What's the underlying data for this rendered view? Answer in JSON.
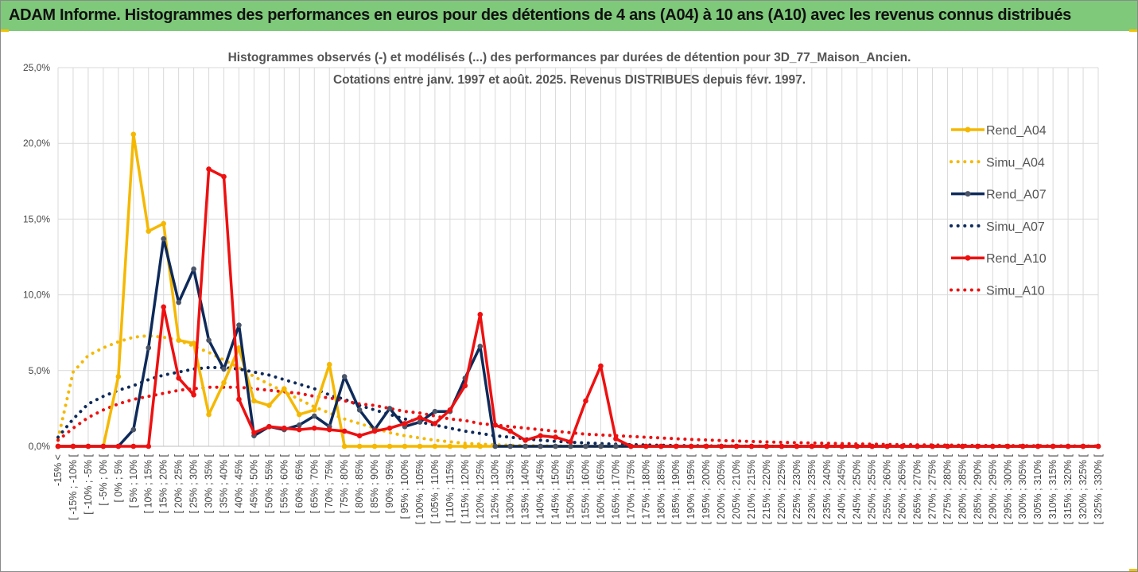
{
  "banner": {
    "title": "ADAM Informe. Histogrammes des performances en euros pour des détentions de 4 ans (A04) à 10 ans (A10) avec les revenus connus distribués"
  },
  "colors": {
    "banner_bg": "#7ec97a",
    "A04": "#f5b800",
    "A07": "#0e2a5a",
    "A10": "#ee1010",
    "grid": "#d9d9d9"
  },
  "chart_data": {
    "type": "line",
    "title_line1": "Histogrammes observés (-) et modélisés (...) des performances par durées de détention pour 3D_77_Maison_Ancien.",
    "title_line2": "Cotations entre janv. 1997 et août. 2025. Revenus DISTRIBUES depuis févr. 1997.",
    "ylim": [
      0,
      25
    ],
    "yticks": [
      "0,0%",
      "5,0%",
      "10,0%",
      "15,0%",
      "20,0%",
      "25,0%"
    ],
    "grid": true,
    "legend_position": "right",
    "categories": [
      "-15% <",
      "[ -15% ; -10% [",
      "[ -10% ; -5% [",
      "[ -5% ; 0% [",
      "[ 0% ; 5% [",
      "[ 5% ; 10% [",
      "[ 10% ; 15% [",
      "[ 15% ; 20% [",
      "[ 20% ; 25% [",
      "[ 25% ; 30% [",
      "[ 30% ; 35% [",
      "[ 35% ; 40% [",
      "[ 40% ; 45% [",
      "[ 45% ; 50% [",
      "[ 50% ; 55% [",
      "[ 55% ; 60% [",
      "[ 60% ; 65% [",
      "[ 65% ; 70% [",
      "[ 70% ; 75% [",
      "[ 75% ; 80% [",
      "[ 80% ; 85% [",
      "[ 85% ; 90% [",
      "[ 90% ; 95% [",
      "[ 95% ; 100% [",
      "[ 100% ; 105% [",
      "[ 105% ; 110% [",
      "[ 110% ; 115% [",
      "[ 115% ; 120% [",
      "[ 120% ; 125% [",
      "[ 125% ; 130% [",
      "[ 130% ; 135% [",
      "[ 135% ; 140% [",
      "[ 140% ; 145% [",
      "[ 145% ; 150% [",
      "[ 150% ; 155% [",
      "[ 155% ; 160% [",
      "[ 160% ; 165% [",
      "[ 165% ; 170% [",
      "[ 170% ; 175% [",
      "[ 175% ; 180% [",
      "[ 180% ; 185% [",
      "[ 185% ; 190% [",
      "[ 190% ; 195% [",
      "[ 195% ; 200% [",
      "[ 200% ; 205% [",
      "[ 205% ; 210% [",
      "[ 210% ; 215% [",
      "[ 215% ; 220% [",
      "[ 220% ; 225% [",
      "[ 225% ; 230% [",
      "[ 230% ; 235% [",
      "[ 235% ; 240% [",
      "[ 240% ; 245% [",
      "[ 245% ; 250% [",
      "[ 250% ; 255% [",
      "[ 255% ; 260% [",
      "[ 260% ; 265% [",
      "[ 265% ; 270% [",
      "[ 270% ; 275% [",
      "[ 275% ; 280% [",
      "[ 280% ; 285% [",
      "[ 285% ; 290% [",
      "[ 290% ; 295% [",
      "[ 295% ; 300% [",
      "[ 300% ; 305% [",
      "[ 305% ; 310% [",
      "[ 310% ; 315% [",
      "[ 315% ; 320% [",
      "[ 320% ; 325% [",
      "[ 325% ; 330% ["
    ],
    "series": [
      {
        "name": "Rend_A04",
        "style": "solid",
        "color": "#f5b800",
        "values": [
          0,
          0,
          0,
          0,
          4.6,
          20.6,
          14.2,
          14.7,
          7.0,
          6.8,
          2.1,
          4.2,
          6.5,
          3.0,
          2.7,
          3.8,
          2.1,
          2.4,
          5.4,
          0,
          0,
          0,
          0,
          0,
          0,
          0,
          0,
          0,
          0,
          0,
          0,
          0,
          0,
          0,
          0,
          0,
          0,
          0,
          0,
          0,
          0,
          0,
          0,
          0,
          0,
          0,
          0,
          0,
          0,
          0,
          0,
          0,
          0,
          0,
          0,
          0,
          0,
          0,
          0,
          0,
          0,
          0,
          0,
          0,
          0,
          0,
          0,
          0,
          0,
          0
        ]
      },
      {
        "name": "Simu_A04",
        "style": "dotted",
        "color": "#f5b800",
        "values": [
          0.5,
          4.9,
          6.0,
          6.5,
          6.9,
          7.2,
          7.3,
          7.2,
          7.0,
          6.6,
          6.2,
          5.7,
          5.2,
          4.6,
          4.1,
          3.6,
          3.1,
          2.6,
          2.2,
          1.8,
          1.5,
          1.2,
          0.9,
          0.7,
          0.55,
          0.4,
          0.3,
          0.2,
          0.14,
          0.1,
          0.07,
          0.05,
          0.03,
          0.02,
          0.01,
          0.01,
          0,
          0,
          0,
          0,
          0,
          0,
          0,
          0,
          0,
          0,
          0,
          0,
          0,
          0,
          0,
          0,
          0,
          0,
          0,
          0,
          0,
          0,
          0,
          0,
          0,
          0,
          0,
          0,
          0,
          0,
          0,
          0,
          0,
          0
        ]
      },
      {
        "name": "Rend_A07",
        "style": "solid",
        "color": "#0e2a5a",
        "values": [
          0,
          0,
          0,
          0,
          0,
          1.1,
          6.5,
          13.7,
          9.5,
          11.7,
          7.0,
          5.1,
          8.0,
          0.7,
          1.3,
          1.1,
          1.4,
          2.0,
          1.3,
          4.6,
          2.4,
          1.1,
          2.5,
          1.3,
          1.6,
          2.3,
          2.3,
          4.5,
          6.6,
          0,
          0,
          0,
          0,
          0,
          0,
          0,
          0,
          0,
          0,
          0,
          0,
          0,
          0,
          0,
          0,
          0,
          0,
          0,
          0,
          0,
          0,
          0,
          0,
          0,
          0,
          0,
          0,
          0,
          0,
          0,
          0,
          0,
          0,
          0,
          0,
          0,
          0,
          0,
          0,
          0
        ]
      },
      {
        "name": "Simu_A07",
        "style": "dotted",
        "color": "#0e2a5a",
        "values": [
          0.6,
          1.8,
          2.8,
          3.3,
          3.7,
          4.0,
          4.4,
          4.7,
          4.9,
          5.1,
          5.2,
          5.2,
          5.1,
          4.9,
          4.7,
          4.4,
          4.1,
          3.8,
          3.4,
          3.1,
          2.7,
          2.4,
          2.1,
          1.8,
          1.6,
          1.4,
          1.2,
          1.0,
          0.85,
          0.7,
          0.6,
          0.5,
          0.4,
          0.33,
          0.27,
          0.22,
          0.18,
          0.14,
          0.11,
          0.09,
          0.07,
          0.05,
          0.04,
          0.03,
          0.02,
          0.02,
          0.01,
          0.01,
          0,
          0,
          0,
          0,
          0,
          0,
          0,
          0,
          0,
          0,
          0,
          0,
          0,
          0,
          0,
          0,
          0,
          0,
          0,
          0,
          0,
          0
        ]
      },
      {
        "name": "Rend_A10",
        "style": "solid",
        "color": "#ee1010",
        "values": [
          0,
          0,
          0,
          0,
          0,
          0,
          0,
          9.2,
          4.5,
          3.4,
          18.3,
          17.8,
          3.1,
          0.9,
          1.3,
          1.2,
          1.1,
          1.2,
          1.1,
          1.0,
          0.7,
          1.0,
          1.2,
          1.5,
          1.9,
          1.5,
          2.4,
          4.0,
          8.7,
          1.4,
          1.0,
          0.4,
          0.7,
          0.6,
          0.3,
          3.0,
          5.3,
          0.5,
          0,
          0,
          0,
          0,
          0,
          0,
          0,
          0,
          0,
          0,
          0,
          0,
          0,
          0,
          0,
          0,
          0,
          0,
          0,
          0,
          0,
          0,
          0,
          0,
          0,
          0,
          0,
          0,
          0,
          0,
          0,
          0
        ]
      },
      {
        "name": "Simu_A10",
        "style": "dotted",
        "color": "#ee1010",
        "values": [
          0.4,
          1.2,
          1.9,
          2.4,
          2.8,
          3.1,
          3.3,
          3.5,
          3.7,
          3.8,
          3.9,
          3.9,
          3.9,
          3.8,
          3.7,
          3.6,
          3.5,
          3.3,
          3.2,
          3.0,
          2.8,
          2.7,
          2.5,
          2.3,
          2.2,
          2.0,
          1.8,
          1.7,
          1.5,
          1.4,
          1.3,
          1.2,
          1.1,
          1.0,
          0.9,
          0.8,
          0.75,
          0.7,
          0.65,
          0.6,
          0.55,
          0.5,
          0.45,
          0.42,
          0.38,
          0.35,
          0.32,
          0.29,
          0.26,
          0.24,
          0.22,
          0.2,
          0.18,
          0.16,
          0.14,
          0.12,
          0.11,
          0.1,
          0.09,
          0.08,
          0.07,
          0.06,
          0.05,
          0.05,
          0.04,
          0.04,
          0.03,
          0.03,
          0.02,
          0.02
        ]
      }
    ]
  }
}
